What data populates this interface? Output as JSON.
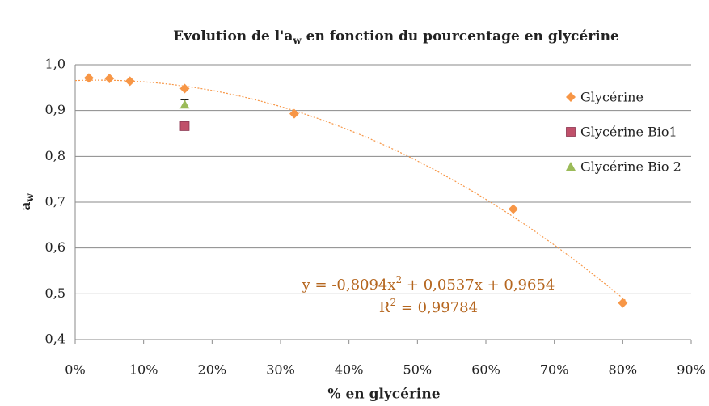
{
  "chart_data": {
    "type": "scatter",
    "title": [
      "Evolution de l'a",
      "w",
      " en fonction du pourcentage en glycérine"
    ],
    "x_label": "% en glycérine",
    "y_label": [
      "a",
      "w"
    ],
    "xlim": [
      0,
      90
    ],
    "xticks": [
      {
        "value": 0,
        "label": "0%"
      },
      {
        "value": 10,
        "label": "10%"
      },
      {
        "value": 20,
        "label": "20%"
      },
      {
        "value": 30,
        "label": "30%"
      },
      {
        "value": 40,
        "label": "40%"
      },
      {
        "value": 50,
        "label": "50%"
      },
      {
        "value": 60,
        "label": "60%"
      },
      {
        "value": 70,
        "label": "70%"
      },
      {
        "value": 80,
        "label": "80%"
      },
      {
        "value": 90,
        "label": "90%"
      }
    ],
    "ylim": [
      0.4,
      1.0
    ],
    "yticks": [
      {
        "value": 0.4,
        "label": "0,4"
      },
      {
        "value": 0.5,
        "label": "0,5"
      },
      {
        "value": 0.6,
        "label": "0,6"
      },
      {
        "value": 0.7,
        "label": "0,7"
      },
      {
        "value": 0.8,
        "label": "0,8"
      },
      {
        "value": 0.9,
        "label": "0,9"
      },
      {
        "value": 1.0,
        "label": "1,0"
      }
    ],
    "grid": true,
    "legend": "right",
    "series": [
      {
        "name": "Glycérine",
        "color": "#f79646",
        "marker": "diamond",
        "x": [
          2,
          5,
          8,
          16,
          32,
          64,
          80
        ],
        "values": [
          0.971,
          0.97,
          0.964,
          0.948,
          0.893,
          0.685,
          0.48
        ]
      },
      {
        "name": "Glycérine Bio1",
        "color": "#c0506a",
        "marker": "square",
        "x": [
          16
        ],
        "values": [
          0.866
        ]
      },
      {
        "name": "Glycérine Bio 2",
        "color": "#9bbb59",
        "marker": "triangle",
        "x": [
          16
        ],
        "values": [
          0.913
        ],
        "errors": [
          0.011
        ]
      }
    ],
    "trendline": {
      "color": "#f79646",
      "coefficients": [
        -0.8094,
        0.0537,
        0.9654
      ],
      "equation": [
        "y = -0,8094x",
        "2",
        " + 0,0537x + 0,9654"
      ],
      "r2_text": [
        "R",
        "2",
        " = 0,99784"
      ],
      "text_color": "#b5661f"
    }
  }
}
